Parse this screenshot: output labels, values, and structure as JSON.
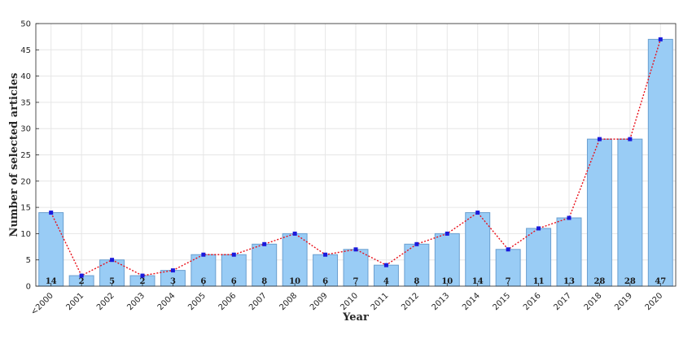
{
  "chart_data": {
    "type": "bar",
    "title": "",
    "xlabel": "Year",
    "ylabel": "Number of selected articles",
    "categories": [
      "<2000",
      "2001",
      "2002",
      "2003",
      "2004",
      "2005",
      "2006",
      "2007",
      "2008",
      "2009",
      "2010",
      "2011",
      "2012",
      "2013",
      "2014",
      "2015",
      "2016",
      "2017",
      "2018",
      "2019",
      "2020"
    ],
    "values": [
      14,
      2,
      5,
      2,
      3,
      6,
      6,
      8,
      10,
      6,
      7,
      4,
      8,
      10,
      14,
      7,
      11,
      13,
      28,
      28,
      47
    ],
    "value_labels": [
      "14",
      "2",
      "5",
      "2",
      "3",
      "6",
      "6",
      "8",
      "10",
      "6",
      "7",
      "4",
      "8",
      "10",
      "14",
      "7",
      "11",
      "13",
      "28",
      "28",
      "47"
    ],
    "ylim": [
      0,
      50
    ],
    "yticks": [
      "0",
      "5",
      "10",
      "15",
      "20",
      "25",
      "30",
      "35",
      "40",
      "45",
      "50"
    ],
    "grid": true,
    "overlay": "dotted line with square markers through bar tops",
    "colors": {
      "bar_fill": "#99ccf5",
      "bar_edge": "#6a9fd0",
      "line": "#e8101a",
      "marker": "#1a1adc",
      "grid": "#e6e6e6",
      "axis": "#262626"
    }
  }
}
